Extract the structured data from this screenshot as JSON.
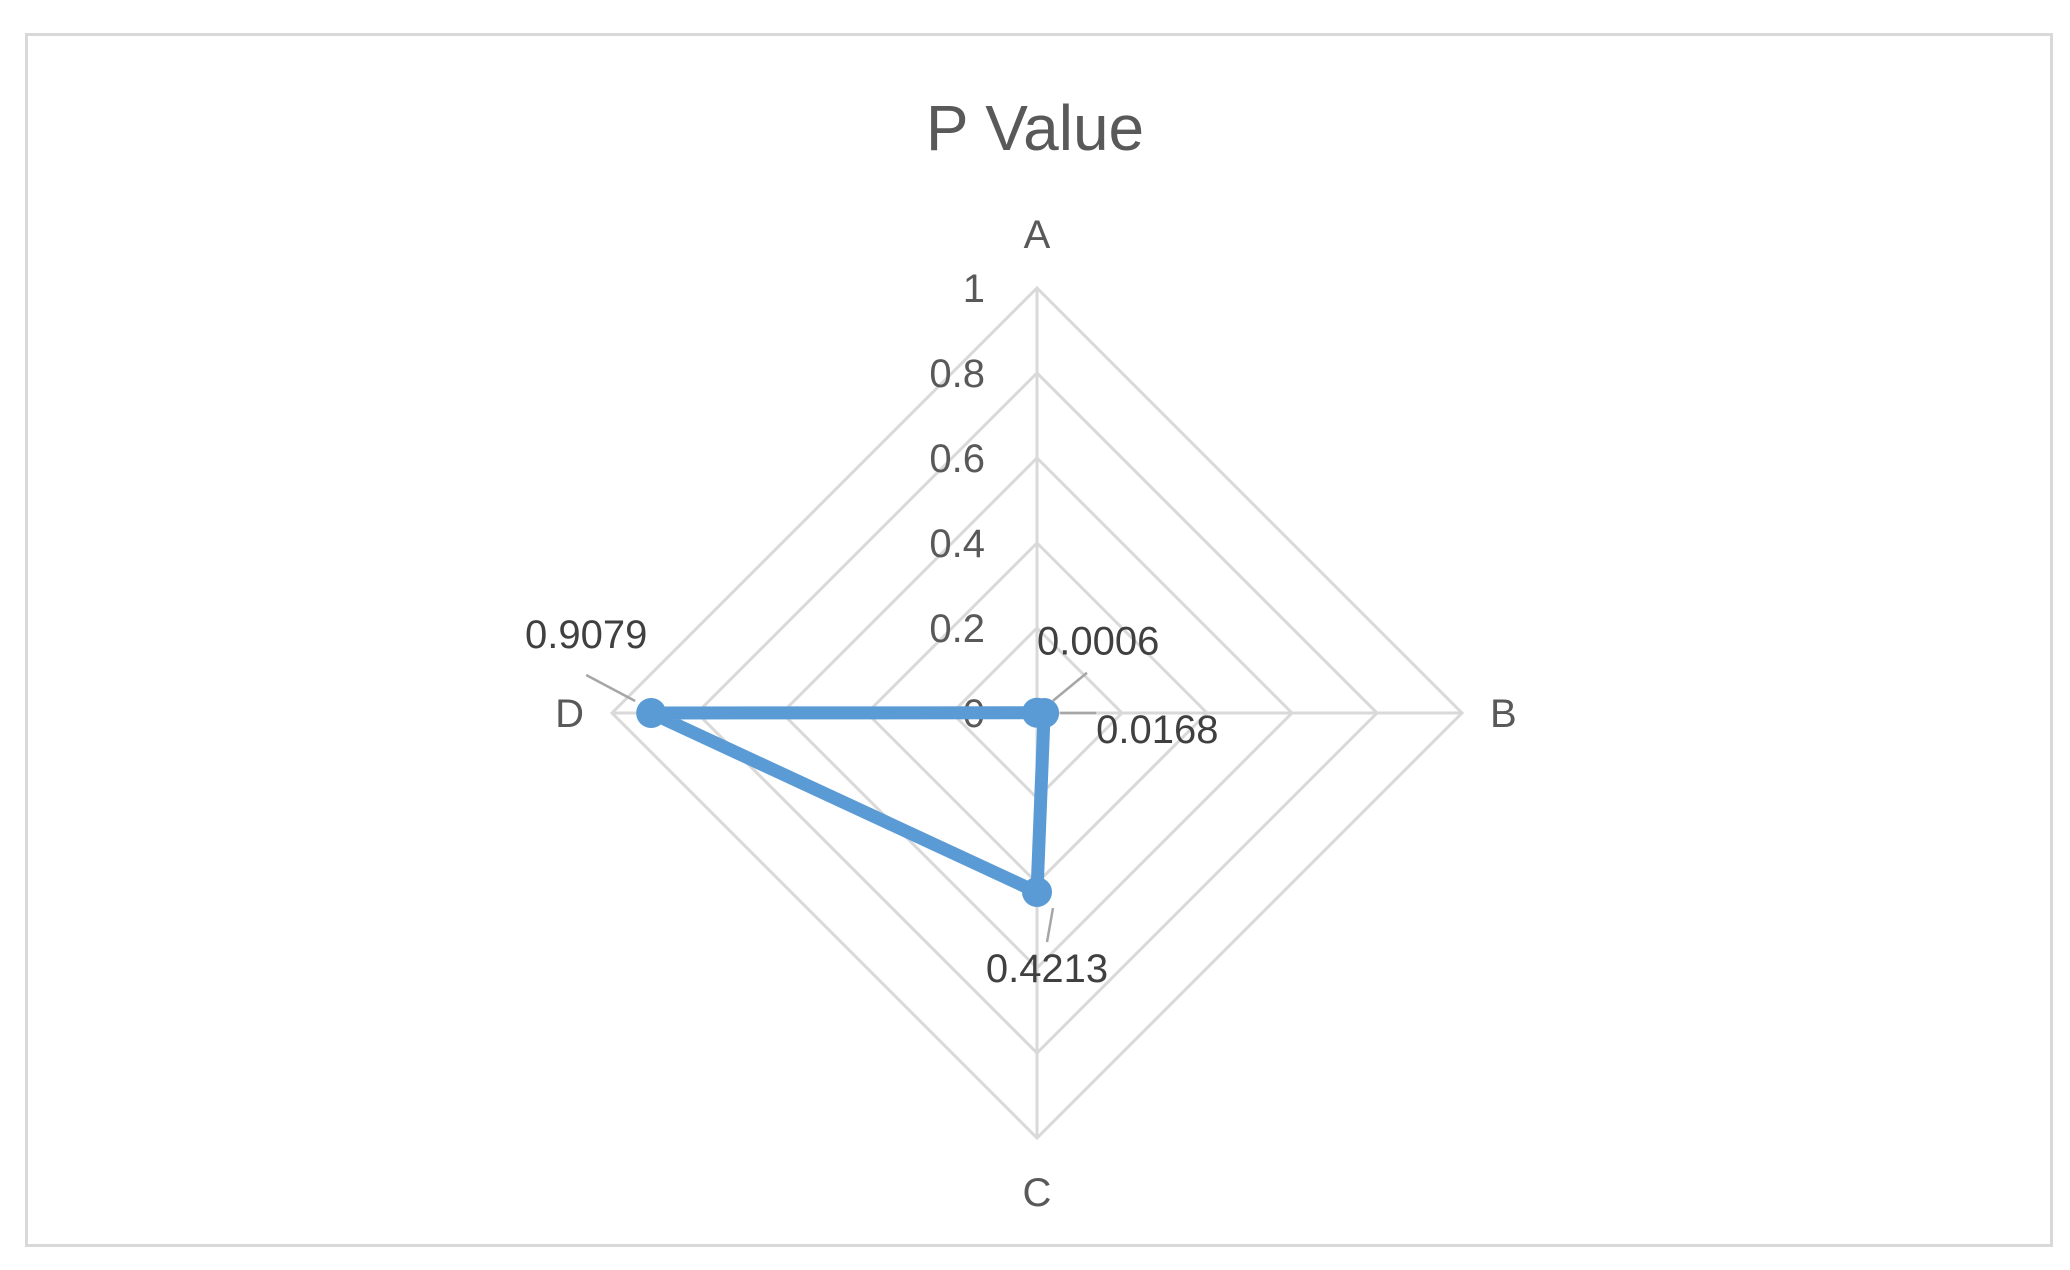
{
  "chart_data": {
    "type": "radar",
    "title": "P Value",
    "categories": [
      "A",
      "B",
      "C",
      "D"
    ],
    "series": [
      {
        "values": [
          0.0006,
          0.0168,
          0.4213,
          0.9079
        ]
      }
    ],
    "data_labels": [
      "0.0006",
      "0.0168",
      "0.4213",
      "0.9079"
    ],
    "rlim": [
      0,
      1
    ],
    "ticks": [
      0,
      0.2,
      0.4,
      0.6,
      0.8,
      1
    ],
    "tick_labels": [
      "0",
      "0.2",
      "0.4",
      "0.6",
      "0.8",
      "1"
    ],
    "grid": true,
    "legend": "none",
    "colors": {
      "series": "#5b9bd5",
      "grid": "#d9d9d9",
      "text": "#595959"
    }
  }
}
